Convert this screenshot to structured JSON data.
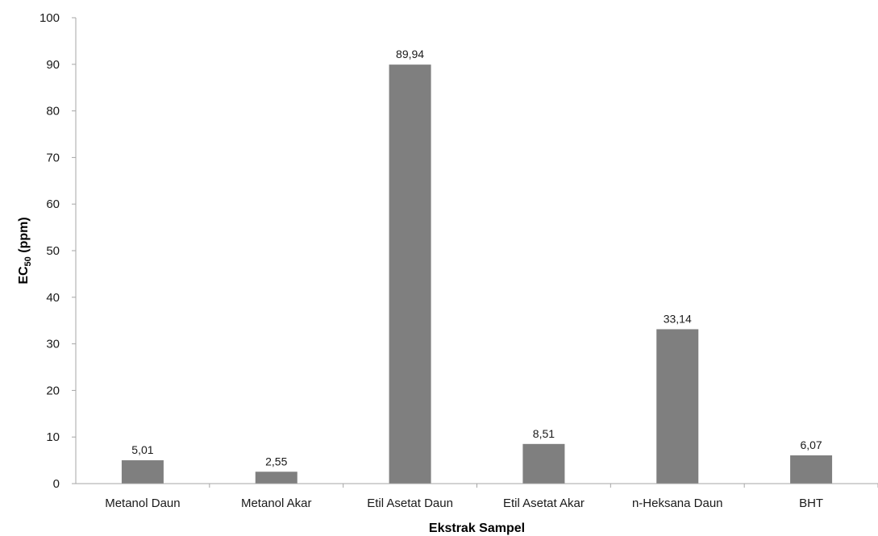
{
  "chart_data": {
    "type": "bar",
    "categories": [
      "Metanol Daun",
      "Metanol Akar",
      "Etil Asetat Daun",
      "Etil Asetat Akar",
      "n-Heksana Daun",
      "BHT"
    ],
    "values": [
      5.01,
      2.55,
      89.94,
      8.51,
      33.14,
      6.07
    ],
    "data_labels": [
      "5,01",
      "2,55",
      "89,94",
      "8,51",
      "33,14",
      "6,07"
    ],
    "xlabel": "Ekstrak Sampel",
    "ylabel_main": "EC",
    "ylabel_sub": "50",
    "ylabel_unit": " (ppm)",
    "ylim": [
      0,
      100
    ],
    "yticks": [
      0,
      10,
      20,
      30,
      40,
      50,
      60,
      70,
      80,
      90,
      100
    ],
    "grid": false,
    "bar_color": "#7f7f7f",
    "axis_color": "#a6a6a6"
  }
}
